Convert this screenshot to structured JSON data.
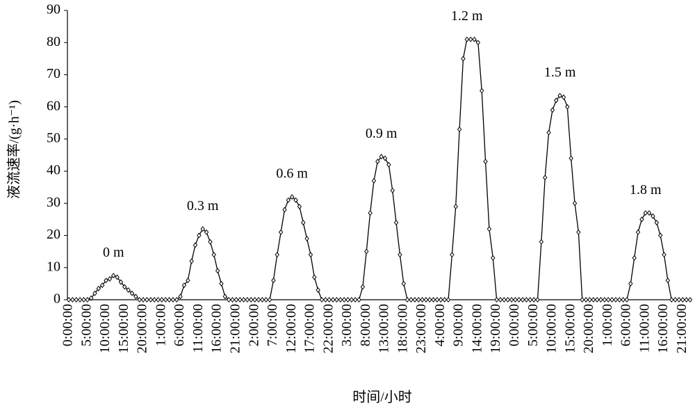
{
  "chart_data": {
    "type": "line",
    "y_label": "液流速率/(g·h⁻¹)",
    "x_label": "时间/小时",
    "annotations": [
      "0 m",
      "0.3 m",
      "0.6 m",
      "0.9 m",
      "1.2 m",
      "1.5 m",
      "1.8 m"
    ],
    "categories": [
      "0:00:00",
      null,
      null,
      null,
      null,
      "5:00:00",
      null,
      null,
      null,
      null,
      "10:00:00",
      null,
      null,
      null,
      null,
      "15:00:00",
      null,
      null,
      null,
      null,
      "20:00:00",
      null,
      null,
      null,
      null,
      "1:00:00",
      null,
      null,
      null,
      null,
      "6:00:00",
      null,
      null,
      null,
      null,
      "11:00:00",
      null,
      null,
      null,
      null,
      "16:00:00",
      null,
      null,
      null,
      null,
      "21:00:00",
      null,
      null,
      null,
      null,
      "2:00:00",
      null,
      null,
      null,
      null,
      "7:00:00",
      null,
      null,
      null,
      null,
      "12:00:00",
      null,
      null,
      null,
      null,
      "17:00:00",
      null,
      null,
      null,
      null,
      "22:00:00",
      null,
      null,
      null,
      null,
      "3:00:00",
      null,
      null,
      null,
      null,
      "8:00:00",
      null,
      null,
      null,
      null,
      "13:00:00",
      null,
      null,
      null,
      null,
      "18:00:00",
      null,
      null,
      null,
      null,
      "23:00:00",
      null,
      null,
      null,
      null,
      "4:00:00",
      null,
      null,
      null,
      null,
      "9:00:00",
      null,
      null,
      null,
      null,
      "14:00:00",
      null,
      null,
      null,
      null,
      "19:00:00",
      null,
      null,
      null,
      null,
      "0:00:00",
      null,
      null,
      null,
      null,
      "5:00:00",
      null,
      null,
      null,
      null,
      "10:00:00",
      null,
      null,
      null,
      null,
      "15:00:00",
      null,
      null,
      null,
      null,
      "20:00:00",
      null,
      null,
      null,
      null,
      "1:00:00",
      null,
      null,
      null,
      null,
      "6:00:00",
      null,
      null,
      null,
      null,
      "11:00:00",
      null,
      null,
      null,
      null,
      "16:00:00",
      null,
      null,
      null,
      null,
      "21:00:00",
      null,
      null
    ],
    "values": [
      0,
      0,
      0,
      0,
      0,
      0,
      0.5,
      2,
      3.5,
      4.5,
      6,
      6.5,
      7.5,
      7,
      5.5,
      4,
      3,
      2,
      1,
      0,
      0,
      0,
      0,
      0,
      0,
      0,
      0,
      0,
      0,
      0,
      1,
      4.5,
      6,
      12,
      17,
      20,
      22,
      21,
      18,
      14,
      9,
      5,
      1,
      0,
      0,
      0,
      0,
      0,
      0,
      0,
      0,
      0,
      0,
      0,
      0,
      6,
      14,
      21,
      28,
      31,
      32,
      31,
      29,
      24,
      19,
      14,
      7,
      3,
      0,
      0,
      0,
      0,
      0,
      0,
      0,
      0,
      0,
      0,
      0,
      4,
      15,
      27,
      37,
      43,
      44.5,
      44,
      42,
      34,
      24,
      14,
      5,
      0,
      0,
      0,
      0,
      0,
      0,
      0,
      0,
      0,
      0,
      0,
      0,
      14,
      29,
      53,
      75,
      81,
      81,
      81,
      80,
      65,
      43,
      22,
      13,
      0,
      0,
      0,
      0,
      0,
      0,
      0,
      0,
      0,
      0,
      0,
      0,
      18,
      38,
      52,
      59,
      62,
      63.5,
      63,
      60,
      44,
      30,
      21,
      0,
      0,
      0,
      0,
      0,
      0,
      0,
      0,
      0,
      0,
      0,
      0,
      0,
      5,
      13,
      21,
      25,
      27,
      27,
      26,
      24,
      20,
      14,
      6,
      0,
      0,
      0,
      0,
      0,
      0
    ],
    "color": "#000000",
    "marker": "diamond",
    "ylim": [
      0,
      90
    ],
    "yticks": [
      0,
      10,
      20,
      30,
      40,
      50,
      60,
      70,
      80,
      90
    ]
  }
}
